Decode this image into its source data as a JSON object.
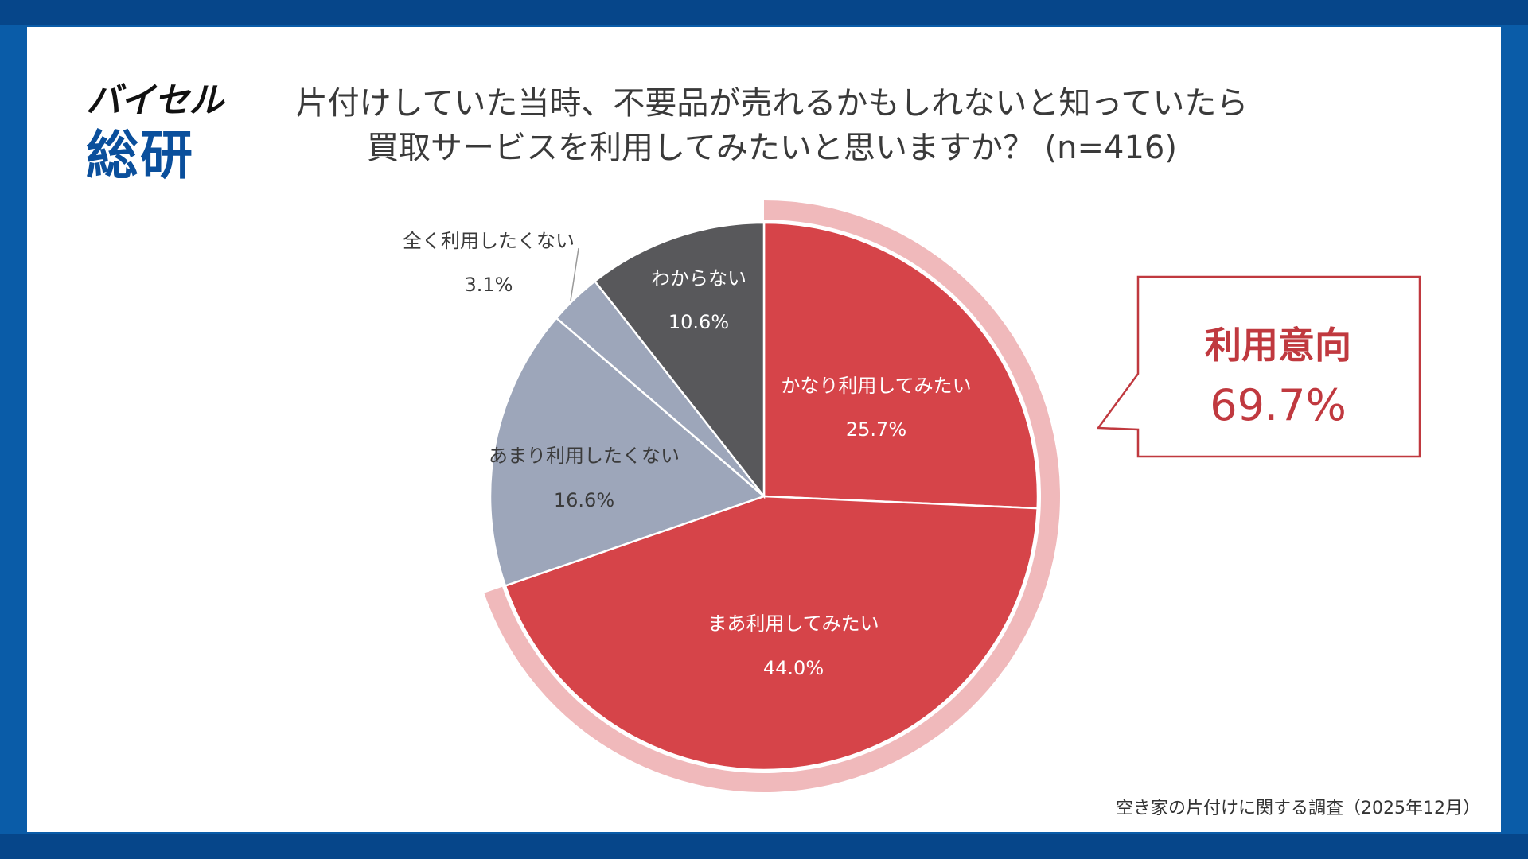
{
  "logo": {
    "brand": "バイセル",
    "sub": "総研"
  },
  "title": {
    "line1": "片付けしていた当時、不要品が売れるかもしれないと知っていたら",
    "line2": "買取サービスを利用してみたいと思いますか？ (n=416)"
  },
  "chart_data": {
    "type": "pie",
    "title": "片付けしていた当時、不要品が売れるかもしれないと知っていたら買取サービスを利用してみたいと思いますか？ (n=416)",
    "start": "12 o'clock, clockwise",
    "slices": [
      {
        "label": "かなり利用してみたい",
        "value": 25.7,
        "display": "25.7%",
        "color": "#d64449"
      },
      {
        "label": "まあ利用してみたい",
        "value": 44.0,
        "display": "44.0%",
        "color": "#d64449"
      },
      {
        "label": "あまり利用したくない",
        "value": 16.6,
        "display": "16.6%",
        "color": "#9da6ba"
      },
      {
        "label": "全く利用したくない",
        "value": 3.1,
        "display": "3.1%",
        "color": "#9da6ba"
      },
      {
        "label": "わからない",
        "value": 10.6,
        "display": "10.6%",
        "color": "#58585b"
      }
    ],
    "highlight": {
      "label": "利用意向",
      "value": 69.7,
      "display": "69.7%",
      "ring_color": "#f0b9bb"
    }
  },
  "callout": {
    "title": "利用意向",
    "value": "69.7%"
  },
  "source": "空き家の片付けに関する調査（2025年12月）",
  "colors": {
    "frame": "#0a5ca8",
    "accent": "#c0393f"
  }
}
